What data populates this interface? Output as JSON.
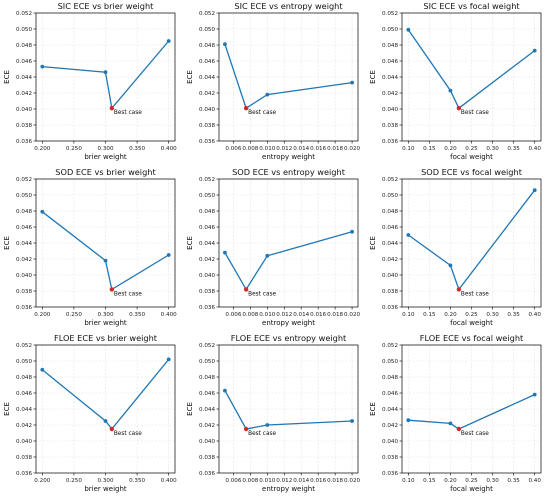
{
  "colors": {
    "line": "#1f77b4",
    "best": "#d62728",
    "grid": "#e3e3e3",
    "axis": "#000000"
  },
  "chart_data": [
    {
      "type": "line",
      "title": "SIC ECE vs brier weight",
      "xlabel": "brier weight",
      "ylabel": "ECE",
      "x": [
        0.2,
        0.3,
        0.31,
        0.4
      ],
      "y": [
        0.0453,
        0.0446,
        0.0401,
        0.0485
      ],
      "best_index": 2,
      "xlim": [
        0.19,
        0.41
      ],
      "ylim": [
        0.036,
        0.052
      ],
      "xticks": [
        0.2,
        0.25,
        0.3,
        0.35,
        0.4
      ],
      "xtick_labels": [
        "0.200",
        "0.250",
        "0.300",
        "0.350",
        "0.400"
      ],
      "yticks": [
        0.036,
        0.038,
        0.04,
        0.042,
        0.044,
        0.046,
        0.048,
        0.05,
        0.052
      ],
      "ytick_labels": [
        "0.036",
        "0.038",
        "0.040",
        "0.042",
        "0.044",
        "0.046",
        "0.048",
        "0.050",
        "0.052"
      ],
      "annotation": "Best case",
      "grid": true
    },
    {
      "type": "line",
      "title": "SIC ECE vs entropy weight",
      "xlabel": "entropy weight",
      "ylabel": "ECE",
      "x": [
        0.005,
        0.0075,
        0.01,
        0.02
      ],
      "y": [
        0.0481,
        0.0401,
        0.0418,
        0.0433
      ],
      "best_index": 1,
      "xlim": [
        0.0043,
        0.0207
      ],
      "ylim": [
        0.036,
        0.052
      ],
      "xticks": [
        0.006,
        0.008,
        0.01,
        0.012,
        0.014,
        0.016,
        0.018,
        0.02
      ],
      "xtick_labels": [
        "0.006",
        "0.008",
        "0.010",
        "0.012",
        "0.014",
        "0.016",
        "0.018",
        "0.020"
      ],
      "yticks": [
        0.036,
        0.038,
        0.04,
        0.042,
        0.044,
        0.046,
        0.048,
        0.05,
        0.052
      ],
      "ytick_labels": [
        "0.036",
        "0.038",
        "0.040",
        "0.042",
        "0.044",
        "0.046",
        "0.048",
        "0.050",
        "0.052"
      ],
      "annotation": "Best case",
      "grid": true
    },
    {
      "type": "line",
      "title": "SIC ECE vs focal weight",
      "xlabel": "focal weight",
      "ylabel": "ECE",
      "x": [
        0.1,
        0.2,
        0.22,
        0.4
      ],
      "y": [
        0.0499,
        0.0423,
        0.0401,
        0.0473
      ],
      "best_index": 2,
      "xlim": [
        0.085,
        0.415
      ],
      "ylim": [
        0.036,
        0.052
      ],
      "xticks": [
        0.1,
        0.15,
        0.2,
        0.25,
        0.3,
        0.35,
        0.4
      ],
      "xtick_labels": [
        "0.10",
        "0.15",
        "0.20",
        "0.25",
        "0.30",
        "0.35",
        "0.40"
      ],
      "yticks": [
        0.036,
        0.038,
        0.04,
        0.042,
        0.044,
        0.046,
        0.048,
        0.05,
        0.052
      ],
      "ytick_labels": [
        "0.036",
        "0.038",
        "0.040",
        "0.042",
        "0.044",
        "0.046",
        "0.048",
        "0.050",
        "0.052"
      ],
      "annotation": "Best case",
      "grid": true
    },
    {
      "type": "line",
      "title": "SOD ECE vs brier weight",
      "xlabel": "brier weight",
      "ylabel": "ECE",
      "x": [
        0.2,
        0.3,
        0.31,
        0.4
      ],
      "y": [
        0.0479,
        0.0418,
        0.0382,
        0.0425
      ],
      "best_index": 2,
      "xlim": [
        0.19,
        0.41
      ],
      "ylim": [
        0.036,
        0.052
      ],
      "xticks": [
        0.2,
        0.25,
        0.3,
        0.35,
        0.4
      ],
      "xtick_labels": [
        "0.200",
        "0.250",
        "0.300",
        "0.350",
        "0.400"
      ],
      "yticks": [
        0.036,
        0.038,
        0.04,
        0.042,
        0.044,
        0.046,
        0.048,
        0.05,
        0.052
      ],
      "ytick_labels": [
        "0.036",
        "0.038",
        "0.040",
        "0.042",
        "0.044",
        "0.046",
        "0.048",
        "0.050",
        "0.052"
      ],
      "annotation": "Best case",
      "grid": true
    },
    {
      "type": "line",
      "title": "SOD ECE vs entropy weight",
      "xlabel": "entropy weight",
      "ylabel": "ECE",
      "x": [
        0.005,
        0.0075,
        0.01,
        0.02
      ],
      "y": [
        0.0428,
        0.0382,
        0.0424,
        0.0454
      ],
      "best_index": 1,
      "xlim": [
        0.0043,
        0.0207
      ],
      "ylim": [
        0.036,
        0.052
      ],
      "xticks": [
        0.006,
        0.008,
        0.01,
        0.012,
        0.014,
        0.016,
        0.018,
        0.02
      ],
      "xtick_labels": [
        "0.006",
        "0.008",
        "0.010",
        "0.012",
        "0.014",
        "0.016",
        "0.018",
        "0.020"
      ],
      "yticks": [
        0.036,
        0.038,
        0.04,
        0.042,
        0.044,
        0.046,
        0.048,
        0.05,
        0.052
      ],
      "ytick_labels": [
        "0.036",
        "0.038",
        "0.040",
        "0.042",
        "0.044",
        "0.046",
        "0.048",
        "0.050",
        "0.052"
      ],
      "annotation": "Best case",
      "grid": true
    },
    {
      "type": "line",
      "title": "SOD ECE vs focal weight",
      "xlabel": "focal weight",
      "ylabel": "ECE",
      "x": [
        0.1,
        0.2,
        0.22,
        0.4
      ],
      "y": [
        0.045,
        0.0412,
        0.0382,
        0.0506
      ],
      "best_index": 2,
      "xlim": [
        0.085,
        0.415
      ],
      "ylim": [
        0.036,
        0.052
      ],
      "xticks": [
        0.1,
        0.15,
        0.2,
        0.25,
        0.3,
        0.35,
        0.4
      ],
      "xtick_labels": [
        "0.10",
        "0.15",
        "0.20",
        "0.25",
        "0.30",
        "0.35",
        "0.40"
      ],
      "yticks": [
        0.036,
        0.038,
        0.04,
        0.042,
        0.044,
        0.046,
        0.048,
        0.05,
        0.052
      ],
      "ytick_labels": [
        "0.036",
        "0.038",
        "0.040",
        "0.042",
        "0.044",
        "0.046",
        "0.048",
        "0.050",
        "0.052"
      ],
      "annotation": "Best case",
      "grid": true
    },
    {
      "type": "line",
      "title": "FLOE ECE vs brier weight",
      "xlabel": "brier weight",
      "ylabel": "ECE",
      "x": [
        0.2,
        0.3,
        0.31,
        0.4
      ],
      "y": [
        0.0489,
        0.0425,
        0.0415,
        0.0502
      ],
      "best_index": 2,
      "xlim": [
        0.19,
        0.41
      ],
      "ylim": [
        0.036,
        0.052
      ],
      "xticks": [
        0.2,
        0.25,
        0.3,
        0.35,
        0.4
      ],
      "xtick_labels": [
        "0.200",
        "0.250",
        "0.300",
        "0.350",
        "0.400"
      ],
      "yticks": [
        0.036,
        0.038,
        0.04,
        0.042,
        0.044,
        0.046,
        0.048,
        0.05,
        0.052
      ],
      "ytick_labels": [
        "0.036",
        "0.038",
        "0.040",
        "0.042",
        "0.044",
        "0.046",
        "0.048",
        "0.050",
        "0.052"
      ],
      "annotation": "Best case",
      "grid": true
    },
    {
      "type": "line",
      "title": "FLOE ECE vs entropy weight",
      "xlabel": "entropy weight",
      "ylabel": "ECE",
      "x": [
        0.005,
        0.0075,
        0.01,
        0.02
      ],
      "y": [
        0.0463,
        0.0415,
        0.042,
        0.0425
      ],
      "best_index": 1,
      "xlim": [
        0.0043,
        0.0207
      ],
      "ylim": [
        0.036,
        0.052
      ],
      "xticks": [
        0.006,
        0.008,
        0.01,
        0.012,
        0.014,
        0.016,
        0.018,
        0.02
      ],
      "xtick_labels": [
        "0.006",
        "0.008",
        "0.010",
        "0.012",
        "0.014",
        "0.016",
        "0.018",
        "0.020"
      ],
      "yticks": [
        0.036,
        0.038,
        0.04,
        0.042,
        0.044,
        0.046,
        0.048,
        0.05,
        0.052
      ],
      "ytick_labels": [
        "0.036",
        "0.038",
        "0.040",
        "0.042",
        "0.044",
        "0.046",
        "0.048",
        "0.050",
        "0.052"
      ],
      "annotation": "Best case",
      "grid": true
    },
    {
      "type": "line",
      "title": "FLOE ECE vs focal weight",
      "xlabel": "focal weight",
      "ylabel": "ECE",
      "x": [
        0.1,
        0.2,
        0.22,
        0.4
      ],
      "y": [
        0.0426,
        0.0422,
        0.0415,
        0.0458
      ],
      "best_index": 2,
      "xlim": [
        0.085,
        0.415
      ],
      "ylim": [
        0.036,
        0.052
      ],
      "xticks": [
        0.1,
        0.15,
        0.2,
        0.25,
        0.3,
        0.35,
        0.4
      ],
      "xtick_labels": [
        "0.10",
        "0.15",
        "0.20",
        "0.25",
        "0.30",
        "0.35",
        "0.40"
      ],
      "yticks": [
        0.036,
        0.038,
        0.04,
        0.042,
        0.044,
        0.046,
        0.048,
        0.05,
        0.052
      ],
      "ytick_labels": [
        "0.036",
        "0.038",
        "0.040",
        "0.042",
        "0.044",
        "0.046",
        "0.048",
        "0.050",
        "0.052"
      ],
      "annotation": "Best case",
      "grid": true
    }
  ]
}
